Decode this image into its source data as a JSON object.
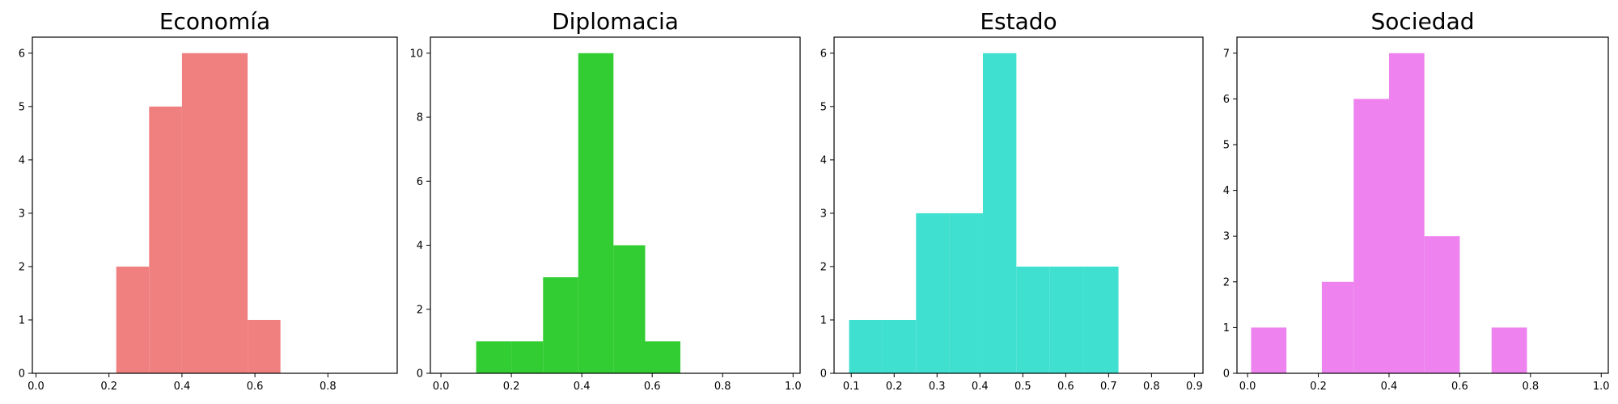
{
  "chart_data": [
    {
      "type": "bar",
      "title": "Economía",
      "color": "#f08080",
      "xlim": [
        -0.01,
        0.99
      ],
      "ylim": [
        0,
        6.3
      ],
      "xticks": [
        "0.0",
        "0.2",
        "0.4",
        "0.6",
        "0.8"
      ],
      "yticks": [
        "0",
        "1",
        "2",
        "3",
        "4",
        "5",
        "6"
      ],
      "bins": [
        {
          "x0": 0.22,
          "x1": 0.31,
          "count": 2
        },
        {
          "x0": 0.31,
          "x1": 0.4,
          "count": 5
        },
        {
          "x0": 0.4,
          "x1": 0.49,
          "count": 6
        },
        {
          "x0": 0.49,
          "x1": 0.58,
          "count": 6
        },
        {
          "x0": 0.58,
          "x1": 0.67,
          "count": 1
        }
      ]
    },
    {
      "type": "bar",
      "title": "Diplomacia",
      "color": "#32cd32",
      "xlim": [
        -0.03,
        1.02
      ],
      "ylim": [
        0,
        10.5
      ],
      "xticks": [
        "0.0",
        "0.2",
        "0.4",
        "0.6",
        "0.8",
        "1.0"
      ],
      "yticks": [
        "0",
        "2",
        "4",
        "6",
        "8",
        "10"
      ],
      "bins": [
        {
          "x0": 0.1,
          "x1": 0.2,
          "count": 1
        },
        {
          "x0": 0.2,
          "x1": 0.29,
          "count": 1
        },
        {
          "x0": 0.29,
          "x1": 0.39,
          "count": 3
        },
        {
          "x0": 0.39,
          "x1": 0.49,
          "count": 10
        },
        {
          "x0": 0.49,
          "x1": 0.58,
          "count": 4
        },
        {
          "x0": 0.58,
          "x1": 0.68,
          "count": 1
        }
      ]
    },
    {
      "type": "bar",
      "title": "Estado",
      "color": "#40e0d0",
      "xlim": [
        0.06,
        0.92
      ],
      "ylim": [
        0,
        6.3
      ],
      "xticks": [
        "0.1",
        "0.2",
        "0.3",
        "0.4",
        "0.5",
        "0.6",
        "0.7",
        "0.8",
        "0.9"
      ],
      "yticks": [
        "0",
        "1",
        "2",
        "3",
        "4",
        "5",
        "6"
      ],
      "bins": [
        {
          "x0": 0.095,
          "x1": 0.173,
          "count": 1
        },
        {
          "x0": 0.173,
          "x1": 0.251,
          "count": 1
        },
        {
          "x0": 0.251,
          "x1": 0.329,
          "count": 3
        },
        {
          "x0": 0.329,
          "x1": 0.407,
          "count": 3
        },
        {
          "x0": 0.407,
          "x1": 0.485,
          "count": 6
        },
        {
          "x0": 0.485,
          "x1": 0.563,
          "count": 2
        },
        {
          "x0": 0.563,
          "x1": 0.641,
          "count": 2
        },
        {
          "x0": 0.641,
          "x1": 0.723,
          "count": 2
        }
      ]
    },
    {
      "type": "bar",
      "title": "Sociedad",
      "color": "#ee82ee",
      "xlim": [
        -0.03,
        1.02
      ],
      "ylim": [
        0,
        7.35
      ],
      "xticks": [
        "0.0",
        "0.2",
        "0.4",
        "0.6",
        "0.8",
        "1.0"
      ],
      "yticks": [
        "0",
        "1",
        "2",
        "3",
        "4",
        "5",
        "6",
        "7"
      ],
      "bins": [
        {
          "x0": 0.01,
          "x1": 0.11,
          "count": 1
        },
        {
          "x0": 0.11,
          "x1": 0.21,
          "count": 0
        },
        {
          "x0": 0.21,
          "x1": 0.3,
          "count": 2
        },
        {
          "x0": 0.3,
          "x1": 0.4,
          "count": 6
        },
        {
          "x0": 0.4,
          "x1": 0.5,
          "count": 7
        },
        {
          "x0": 0.5,
          "x1": 0.6,
          "count": 3
        },
        {
          "x0": 0.6,
          "x1": 0.69,
          "count": 0
        },
        {
          "x0": 0.69,
          "x1": 0.79,
          "count": 1
        }
      ]
    }
  ]
}
